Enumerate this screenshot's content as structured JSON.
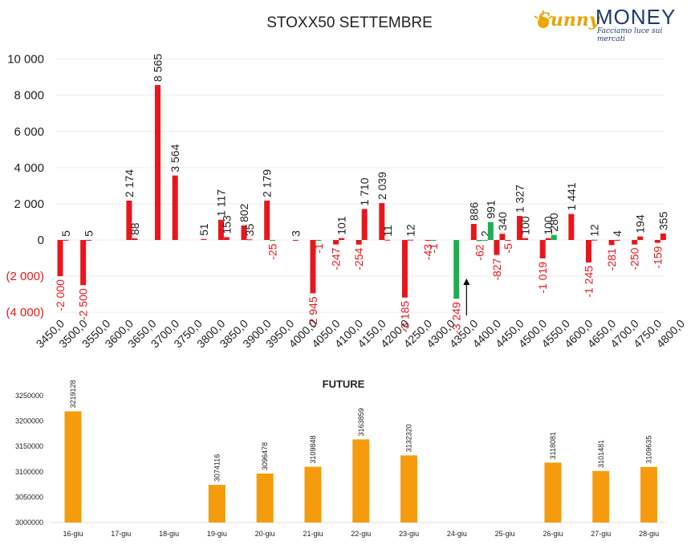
{
  "title": "STOXX50 SETTEMBRE",
  "logo": {
    "brand_left": "Sunny",
    "brand_right": "MONEY",
    "tagline": "Facciamo luce sui mercati"
  },
  "colors": {
    "put": "#e8161b",
    "call": "#1ab052",
    "future": "#f59b0c",
    "neg_label": "#e8161b"
  },
  "chart_data": [
    {
      "type": "bar",
      "title": "STOXX50 SETTEMBRE",
      "ylim": [
        -4000,
        10000
      ],
      "yticks": [
        "(4 000)",
        "(2 000)",
        "0",
        "2 000",
        "4 000",
        "6 000",
        "8 000",
        "10 000"
      ],
      "categories": [
        "3450,0",
        "3500,0",
        "3550,0",
        "3600,0",
        "3650,0",
        "3700,0",
        "3750,0",
        "3800,0",
        "3850,0",
        "3900,0",
        "3950,0",
        "4000,0",
        "4050,0",
        "4100,0",
        "4150,0",
        "4200,0",
        "4250,0",
        "4300,0",
        "4350,0",
        "4400,0",
        "4450,0",
        "4500,0",
        "4550,0",
        "4600,0",
        "4650,0",
        "4700,0",
        "4750,0",
        "4800,0"
      ],
      "series": [
        {
          "values": [
            -2000,
            -2500,
            null,
            2174,
            null,
            3564,
            null,
            1117,
            802,
            2179,
            null,
            -2945,
            -247,
            -254,
            2039,
            -3185,
            -43,
            null,
            886,
            -827,
            1327,
            -1019,
            null,
            -1245,
            -281,
            -250,
            -159,
            null
          ],
          "labels": [
            "-2 000",
            "-2 500",
            "",
            "2 174",
            "",
            "3 564",
            "",
            "1 117",
            "802",
            "2 179",
            "",
            "-2 945",
            "-247",
            "-254",
            "2 039",
            "-3 185",
            "-43",
            "",
            "886",
            "-827",
            "1 327",
            "-1 019",
            "",
            "-1 245",
            "-281",
            "-250",
            "-159",
            ""
          ]
        },
        {
          "values": [
            5,
            5,
            null,
            88,
            8565,
            null,
            51,
            153,
            35,
            -25,
            3,
            -1,
            101,
            1710,
            11,
            12,
            -1,
            -3249,
            -62,
            340,
            100,
            100,
            1441,
            12,
            4,
            194,
            355,
            null
          ],
          "labels": [
            "5",
            "5",
            "",
            "88",
            "8 565",
            "",
            "51",
            "153",
            "35",
            "-25",
            "3",
            "-1",
            "101",
            "1 710",
            "11",
            "12",
            "-1",
            "-3 249",
            "-62",
            "340",
            "100",
            "100",
            "1 441",
            "12",
            "4",
            "194",
            "355",
            ""
          ]
        },
        {
          "values": [
            null,
            null,
            null,
            null,
            null,
            null,
            null,
            null,
            null,
            null,
            null,
            null,
            null,
            null,
            null,
            null,
            null,
            null,
            2,
            -5,
            null,
            280,
            null,
            null,
            null,
            null,
            null,
            null
          ],
          "labels": [
            "",
            "",
            "",
            "",
            "",
            "",
            "",
            "",
            "",
            "",
            "",
            "",
            "",
            "",
            "",
            "",
            "",
            "",
            "2",
            "-5",
            "",
            "280",
            "",
            "",
            "",
            "",
            "",
            ""
          ]
        },
        {
          "values": [
            null,
            null,
            null,
            null,
            null,
            null,
            null,
            null,
            null,
            null,
            null,
            null,
            null,
            null,
            null,
            null,
            null,
            null,
            991,
            null,
            null,
            null,
            null,
            null,
            null,
            null,
            null,
            null
          ],
          "labels": [
            "",
            "",
            "",
            "",
            "",
            "",
            "",
            "",
            "",
            "",
            "",
            "",
            "",
            "",
            "",
            "",
            "",
            "",
            "991",
            "",
            "",
            "",
            "",
            "",
            "",
            "",
            "",
            ""
          ]
        }
      ],
      "annotation": "arrow at 4350,0"
    },
    {
      "type": "bar",
      "title": "FUTURE",
      "ylim": [
        3000000,
        3250000
      ],
      "yticks": [
        "3000000",
        "3050000",
        "3100000",
        "3150000",
        "3200000",
        "3250000"
      ],
      "categories": [
        "16-giu",
        "17-giu",
        "18-giu",
        "19-giu",
        "20-giu",
        "21-giu",
        "22-giu",
        "23-giu",
        "24-giu",
        "25-giu",
        "26-giu",
        "27-giu",
        "28-giu"
      ],
      "values": [
        3219128,
        null,
        null,
        3074116,
        3096478,
        3109848,
        3163859,
        3132320,
        null,
        null,
        3118081,
        3101481,
        3109635
      ]
    }
  ]
}
